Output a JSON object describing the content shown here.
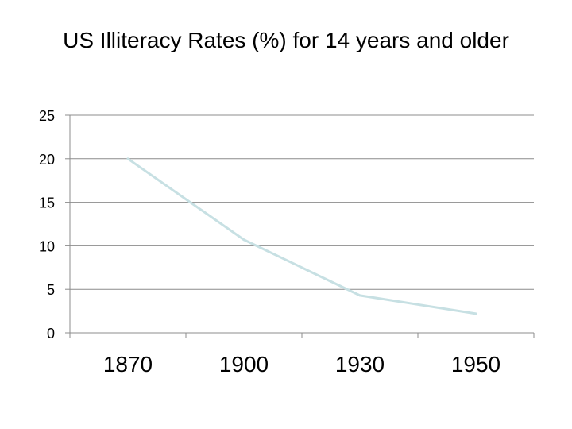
{
  "chart_data": {
    "type": "line",
    "title": "US Illiteracy Rates (%) for 14 years and older",
    "categories": [
      "1870",
      "1900",
      "1930",
      "1950"
    ],
    "series": [
      {
        "values": [
          20.0,
          10.7,
          4.3,
          2.2
        ]
      }
    ],
    "ylim": [
      0,
      25
    ],
    "yticks": [
      0,
      5,
      10,
      15,
      20,
      25
    ],
    "xlabel": "",
    "ylabel": "",
    "grid": "horizontal",
    "legend": "none",
    "line_color": "#c7e0e3",
    "grid_color": "#8c8c8c"
  }
}
